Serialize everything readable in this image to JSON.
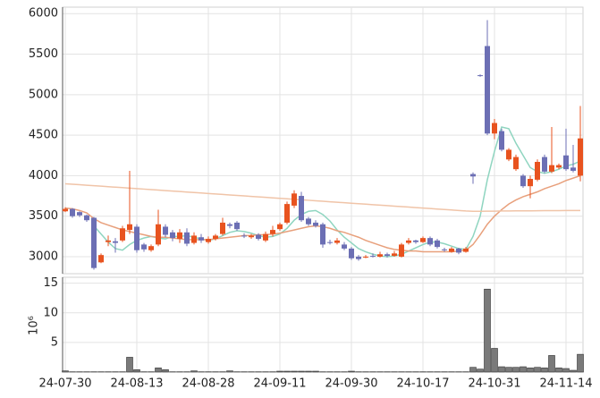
{
  "chart_data": {
    "type": "candlestick",
    "categories": [
      "24-07-30",
      null,
      null,
      null,
      null,
      null,
      null,
      null,
      null,
      null,
      "24-08-13",
      null,
      null,
      null,
      null,
      null,
      null,
      null,
      null,
      null,
      "24-08-28",
      null,
      null,
      null,
      null,
      null,
      null,
      null,
      null,
      null,
      "24-09-11",
      null,
      null,
      null,
      null,
      null,
      null,
      null,
      null,
      null,
      "24-09-30",
      null,
      null,
      null,
      null,
      null,
      null,
      null,
      null,
      null,
      "24-10-17",
      null,
      null,
      null,
      null,
      null,
      null,
      null,
      null,
      null,
      "24-10-31",
      null,
      null,
      null,
      null,
      null,
      null,
      null,
      null,
      null,
      "24-11-14",
      null,
      null
    ],
    "open": [
      3560,
      3590,
      3550,
      3510,
      3480,
      2930,
      3180,
      3190,
      3200,
      3330,
      3370,
      3150,
      3080,
      3150,
      3370,
      3300,
      3220,
      3300,
      3170,
      3240,
      3180,
      3220,
      3280,
      3400,
      3420,
      3260,
      3240,
      3270,
      3200,
      3280,
      3340,
      3420,
      3630,
      3750,
      3470,
      3420,
      3400,
      3180,
      3170,
      3150,
      3100,
      3000,
      2990,
      3010,
      3000,
      3030,
      3010,
      3000,
      3170,
      3200,
      3180,
      3230,
      3200,
      3090,
      3060,
      3100,
      3060,
      4020,
      5240,
      5600,
      4520,
      4550,
      4200,
      4080,
      4000,
      3870,
      3950,
      4230,
      4050,
      4100,
      4250,
      4100,
      4000
    ],
    "high": [
      3610,
      3600,
      3560,
      3520,
      3490,
      3040,
      3260,
      3230,
      3380,
      4060,
      3400,
      3170,
      3150,
      3580,
      3400,
      3330,
      3340,
      3350,
      3300,
      3280,
      3250,
      3280,
      3480,
      3420,
      3440,
      3290,
      3280,
      3290,
      3310,
      3380,
      3420,
      3680,
      3820,
      3800,
      3490,
      3450,
      3420,
      3210,
      3230,
      3180,
      3120,
      3020,
      3020,
      3040,
      3060,
      3050,
      3070,
      3170,
      3230,
      3210,
      3250,
      3250,
      3220,
      3110,
      3120,
      3110,
      3120,
      4040,
      5250,
      5920,
      4700,
      4580,
      4340,
      4260,
      4020,
      4000,
      4200,
      4260,
      4600,
      4150,
      4580,
      4380,
      4860
    ],
    "low": [
      3550,
      3480,
      3490,
      3430,
      2840,
      2920,
      3130,
      3050,
      3180,
      3280,
      3050,
      3060,
      3060,
      3130,
      3240,
      3190,
      3170,
      3130,
      3150,
      3170,
      3160,
      3200,
      3260,
      3350,
      3320,
      3230,
      3220,
      3200,
      3180,
      3250,
      3320,
      3400,
      3600,
      3430,
      3380,
      3360,
      3110,
      3150,
      3150,
      3080,
      2960,
      2950,
      2980,
      2990,
      2990,
      2990,
      3000,
      2990,
      3150,
      3160,
      3170,
      3130,
      3100,
      3060,
      3050,
      3030,
      3050,
      3900,
      5220,
      4500,
      4450,
      4300,
      4180,
      4060,
      3850,
      3720,
      3930,
      4030,
      4030,
      4080,
      4060,
      4040,
      3930
    ],
    "close": [
      3590,
      3500,
      3510,
      3450,
      2860,
      3020,
      3200,
      3170,
      3350,
      3400,
      3080,
      3090,
      3130,
      3400,
      3270,
      3230,
      3300,
      3160,
      3260,
      3200,
      3220,
      3260,
      3420,
      3380,
      3340,
      3250,
      3260,
      3220,
      3280,
      3330,
      3400,
      3650,
      3780,
      3450,
      3400,
      3380,
      3150,
      3170,
      3200,
      3100,
      2980,
      2970,
      3000,
      3000,
      3030,
      3010,
      3040,
      3150,
      3200,
      3180,
      3230,
      3150,
      3120,
      3080,
      3100,
      3050,
      3100,
      3990,
      5230,
      4520,
      4650,
      4320,
      4320,
      4230,
      3870,
      3960,
      4170,
      4050,
      4130,
      4130,
      4080,
      4060,
      4460
    ],
    "up_color": "#e8531f",
    "down_color": "#6c6fb4",
    "ylim": [
      2790,
      6080
    ],
    "yticks": [
      3000,
      3500,
      4000,
      4500,
      5000,
      5500,
      6000
    ],
    "series": [
      {
        "color": "#8fd5c0",
        "values": [
          null,
          null,
          null,
          null,
          3380,
          3280,
          3180,
          3100,
          3080,
          3150,
          3200,
          3230,
          3250,
          3230,
          3220,
          3250,
          3250,
          3260,
          3240,
          3220,
          3200,
          3220,
          3260,
          3300,
          3320,
          3310,
          3290,
          3260,
          3240,
          3250,
          3280,
          3350,
          3450,
          3520,
          3560,
          3570,
          3520,
          3440,
          3330,
          3240,
          3170,
          3100,
          3060,
          3030,
          3010,
          3000,
          3010,
          3030,
          3070,
          3110,
          3150,
          3180,
          3180,
          3160,
          3130,
          3100,
          3090,
          3250,
          3500,
          3950,
          4300,
          4600,
          4580,
          4400,
          4250,
          4100,
          4050,
          4030,
          4050,
          4080,
          4120,
          4140,
          4180
        ]
      },
      {
        "color": "#e8a07c",
        "values": [
          3600,
          3590,
          3570,
          3540,
          3470,
          3420,
          3390,
          3360,
          3330,
          3310,
          3290,
          3270,
          3250,
          3240,
          3240,
          3230,
          3220,
          3210,
          3210,
          3210,
          3210,
          3220,
          3230,
          3240,
          3250,
          3260,
          3260,
          3270,
          3270,
          3280,
          3290,
          3310,
          3330,
          3350,
          3370,
          3380,
          3370,
          3350,
          3320,
          3300,
          3270,
          3240,
          3200,
          3170,
          3140,
          3110,
          3090,
          3080,
          3070,
          3070,
          3060,
          3060,
          3060,
          3060,
          3060,
          3070,
          3080,
          3150,
          3270,
          3400,
          3500,
          3580,
          3650,
          3700,
          3740,
          3770,
          3800,
          3840,
          3870,
          3900,
          3940,
          3970,
          4000
        ]
      },
      {
        "color": "#f0c4a8",
        "values": [
          3900,
          3894,
          3888,
          3882,
          3876,
          3870,
          3864,
          3858,
          3852,
          3846,
          3840,
          3834,
          3828,
          3822,
          3816,
          3810,
          3804,
          3798,
          3792,
          3786,
          3780,
          3774,
          3768,
          3762,
          3756,
          3750,
          3744,
          3738,
          3732,
          3726,
          3720,
          3714,
          3708,
          3702,
          3696,
          3690,
          3684,
          3678,
          3672,
          3666,
          3660,
          3654,
          3648,
          3642,
          3636,
          3630,
          3624,
          3618,
          3612,
          3606,
          3600,
          3594,
          3588,
          3582,
          3576,
          3570,
          3564,
          3560,
          3560,
          3562,
          3562,
          3564,
          3564,
          3565,
          3566,
          3566,
          3567,
          3568,
          3568,
          3569,
          3570,
          3570,
          3570
        ]
      }
    ],
    "volume": {
      "label": "10⁶",
      "color": "#7a7a7a",
      "ylim": [
        0,
        16
      ],
      "yticks": [
        5,
        10,
        15
      ],
      "values": [
        0.2,
        0.05,
        0.05,
        0.05,
        0.05,
        0.05,
        0.05,
        0.05,
        0.05,
        2.5,
        0.4,
        0.05,
        0.05,
        0.7,
        0.4,
        0.05,
        0.05,
        0.05,
        0.2,
        0.05,
        0.05,
        0.05,
        0.05,
        0.2,
        0.05,
        0.05,
        0.05,
        0.05,
        0.05,
        0.05,
        0.15,
        0.15,
        0.15,
        0.15,
        0.15,
        0.15,
        0.05,
        0.05,
        0.05,
        0.05,
        0.15,
        0.05,
        0.05,
        0.05,
        0.05,
        0.05,
        0.05,
        0.05,
        0.05,
        0.05,
        0.05,
        0.05,
        0.05,
        0.05,
        0.05,
        0.05,
        0.05,
        0.8,
        0.5,
        14,
        4,
        0.9,
        0.8,
        0.8,
        0.9,
        0.7,
        0.8,
        0.7,
        2.8,
        0.7,
        0.6,
        0.3,
        3.0
      ]
    },
    "grid": true
  }
}
